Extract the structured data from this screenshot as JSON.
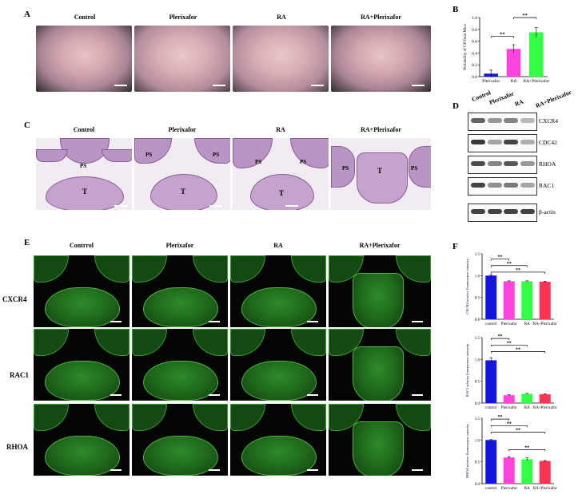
{
  "panels": {
    "A": "A",
    "B": "B",
    "C": "C",
    "D": "D",
    "E": "E",
    "F": "F"
  },
  "groups": [
    "Control",
    "Plerixafor",
    "RA",
    "RA+Plerixafor"
  ],
  "he_groups": [
    "Control",
    "Plerixafor",
    "RA",
    "RA+Plerixafor"
  ],
  "if_groups": [
    "Contrrol",
    "Plerixafor",
    "RA",
    "RA+Plerixafor"
  ],
  "he_labels": {
    "ps": "PS",
    "t": "T"
  },
  "wb": {
    "lanes": [
      "Control",
      "Plerixafor",
      "RA",
      "RA+Plerixafor"
    ],
    "proteins": [
      "CXCR4",
      "CDC42",
      "RHOA",
      "RAC1",
      "β-actin"
    ],
    "band_intensity": [
      [
        0.7,
        0.45,
        0.55,
        0.3
      ],
      [
        0.9,
        0.4,
        0.85,
        0.35
      ],
      [
        0.8,
        0.55,
        0.75,
        0.45
      ],
      [
        0.85,
        0.5,
        0.6,
        0.4
      ],
      [
        0.85,
        0.85,
        0.85,
        0.85
      ]
    ]
  },
  "if_rows": [
    "CXCR4",
    "RAC1",
    "RHOA"
  ],
  "colors": {
    "blue": "#1515e0",
    "magenta": "#ff44dd",
    "green": "#33ff44",
    "red": "#ff3355"
  },
  "sig": "**",
  "chart_data": [
    {
      "type": "bar",
      "categories": [
        "Plerixafor",
        "RA",
        "RA+Plerixafor"
      ],
      "values": [
        0.05,
        0.47,
        0.75
      ],
      "errors": [
        0.06,
        0.07,
        0.08
      ],
      "colors": [
        "#1515e0",
        "#ff44dd",
        "#33ff44"
      ],
      "ylabel": "Probability of CP Fetal Mice",
      "ylim": [
        0,
        1.0
      ],
      "yticks": [
        "0.0",
        "0.2",
        "0.4",
        "0.6",
        "0.8",
        "1.0"
      ],
      "sig_pairs": [
        [
          0,
          1
        ],
        [
          1,
          2
        ]
      ]
    },
    {
      "type": "bar",
      "categories": [
        "control",
        "Plerixafor",
        "RA",
        "RA+Plerixafor"
      ],
      "values": [
        1.0,
        0.87,
        0.87,
        0.86
      ],
      "errors": [
        0.02,
        0.01,
        0.01,
        0.01
      ],
      "colors": [
        "#1515e0",
        "#ff44dd",
        "#33ff44",
        "#ff3355"
      ],
      "ylabel": "CXCR4 relative fluorescence intensity",
      "ylim": [
        0,
        1.5
      ],
      "yticks": [
        "0.0",
        "0.5",
        "1.0",
        "1.5"
      ],
      "sig_pairs": [
        [
          0,
          1
        ],
        [
          0,
          2
        ],
        [
          0,
          3
        ]
      ]
    },
    {
      "type": "bar",
      "categories": [
        "control",
        "Plerixafor",
        "RA",
        "RA+Plerixafor"
      ],
      "values": [
        0.98,
        0.18,
        0.21,
        0.2
      ],
      "errors": [
        0.06,
        0.01,
        0.01,
        0.01
      ],
      "colors": [
        "#1515e0",
        "#ff44dd",
        "#33ff44",
        "#ff3355"
      ],
      "ylabel": "RAC1 relative fluorescence intensity",
      "ylim": [
        0,
        1.5
      ],
      "yticks": [
        "0.0",
        "0.5",
        "1.0",
        "1.5"
      ],
      "sig_pairs": [
        [
          0,
          1
        ],
        [
          0,
          2
        ],
        [
          0,
          3
        ]
      ]
    },
    {
      "type": "bar",
      "categories": [
        "control",
        "Plerixafor",
        "RA",
        "RA+Plerixafor"
      ],
      "values": [
        1.0,
        0.6,
        0.56,
        0.52
      ],
      "errors": [
        0.01,
        0.02,
        0.03,
        0.01
      ],
      "colors": [
        "#1515e0",
        "#ff44dd",
        "#33ff44",
        "#ff3355"
      ],
      "ylabel": "RHOA relative fluorescence intensity",
      "ylim": [
        0,
        1.5
      ],
      "yticks": [
        "0.0",
        "0.5",
        "1.0",
        "1.5"
      ],
      "sig_pairs": [
        [
          0,
          1
        ],
        [
          0,
          2
        ],
        [
          0,
          3
        ],
        [
          1,
          3
        ]
      ]
    }
  ]
}
